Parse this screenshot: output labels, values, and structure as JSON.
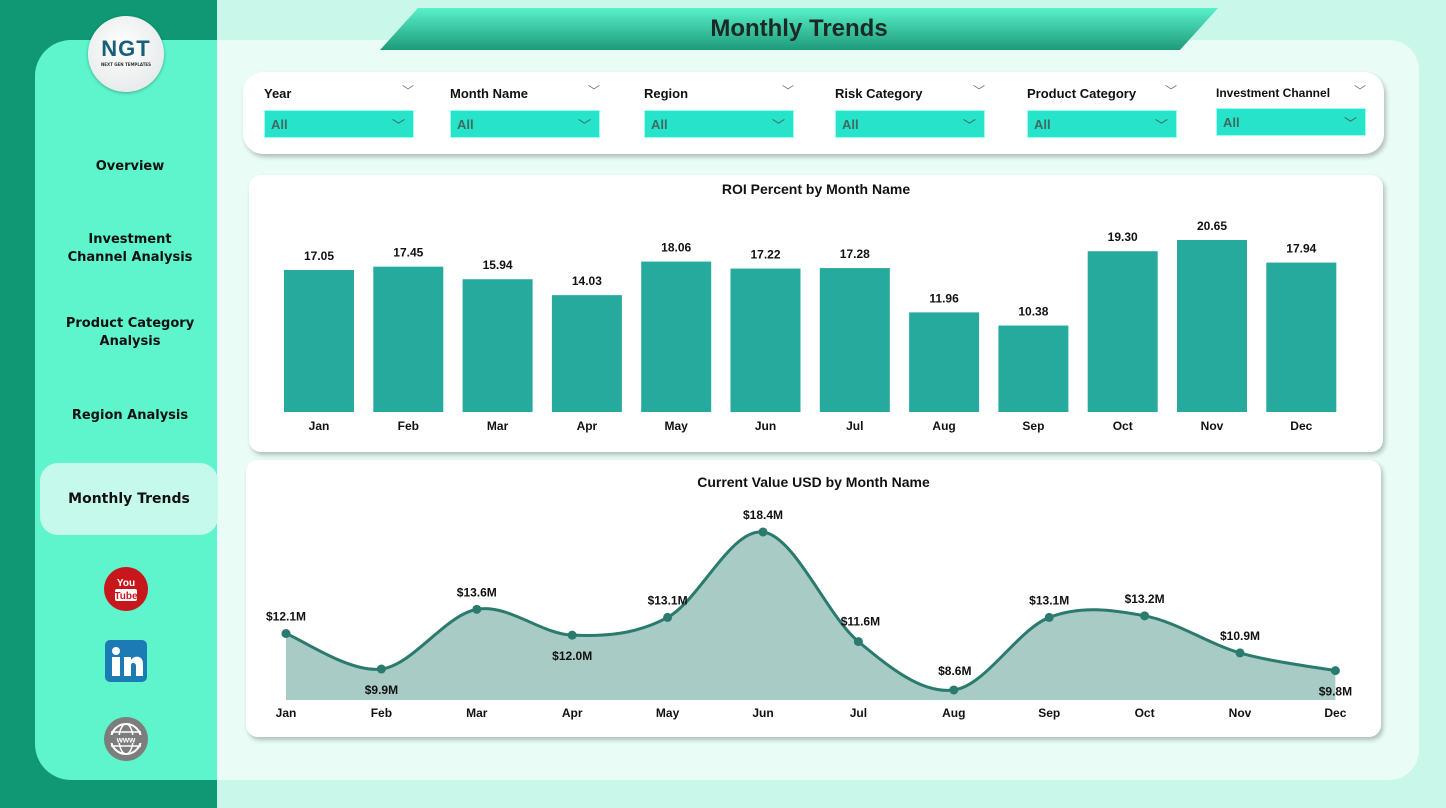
{
  "logo": {
    "text": "NGT",
    "subtitle": "NEXT GEN TEMPLATES"
  },
  "header": {
    "title": "Monthly Trends"
  },
  "sidebar": {
    "items": [
      {
        "label": "Overview",
        "active": false
      },
      {
        "label": "Investment Channel Analysis",
        "active": false
      },
      {
        "label": "Product Category Analysis",
        "active": false
      },
      {
        "label": "Region Analysis",
        "active": false
      },
      {
        "label": "Monthly Trends",
        "active": true
      }
    ],
    "social": [
      {
        "icon": "youtube-icon"
      },
      {
        "icon": "linkedin-icon"
      },
      {
        "icon": "website-globe-icon"
      }
    ]
  },
  "filters": [
    {
      "label": "Year",
      "value": "All"
    },
    {
      "label": "Month Name",
      "value": "All"
    },
    {
      "label": "Region",
      "value": "All"
    },
    {
      "label": "Risk Category",
      "value": "All"
    },
    {
      "label": "Product Category",
      "value": "All"
    },
    {
      "label": "Investment Channel",
      "value": "All"
    }
  ],
  "colors": {
    "bar": "#27aa9e",
    "line": "#2a7a6e",
    "area": "#a8cbc5",
    "accent": "#26e3c9"
  },
  "chart_data": [
    {
      "type": "bar",
      "title": "ROI Percent by Month Name",
      "categories": [
        "Jan",
        "Feb",
        "Mar",
        "Apr",
        "May",
        "Jun",
        "Jul",
        "Aug",
        "Sep",
        "Oct",
        "Nov",
        "Dec"
      ],
      "values": [
        17.05,
        17.45,
        15.94,
        14.03,
        18.06,
        17.22,
        17.28,
        11.96,
        10.38,
        19.3,
        20.65,
        17.94
      ],
      "labels": [
        "17.05",
        "17.45",
        "15.94",
        "14.03",
        "18.06",
        "17.22",
        "17.28",
        "11.96",
        "10.38",
        "19.30",
        "20.65",
        "17.94"
      ],
      "ylim": [
        0,
        20.65
      ],
      "grid": false
    },
    {
      "type": "area",
      "title": "Current Value USD by Month Name",
      "categories": [
        "Jan",
        "Feb",
        "Mar",
        "Apr",
        "May",
        "Jun",
        "Jul",
        "Aug",
        "Sep",
        "Oct",
        "Nov",
        "Dec"
      ],
      "values": [
        12.1,
        9.9,
        13.6,
        12.0,
        13.1,
        18.4,
        11.6,
        8.6,
        13.1,
        13.2,
        10.9,
        9.8
      ],
      "labels": [
        "$12.1M",
        "$9.9M",
        "$13.6M",
        "$12.0M",
        "$13.1M",
        "$18.4M",
        "$11.6M",
        "$8.6M",
        "$13.1M",
        "$13.2M",
        "$10.9M",
        "$9.8M"
      ],
      "unit": "USD millions",
      "grid": false
    }
  ]
}
